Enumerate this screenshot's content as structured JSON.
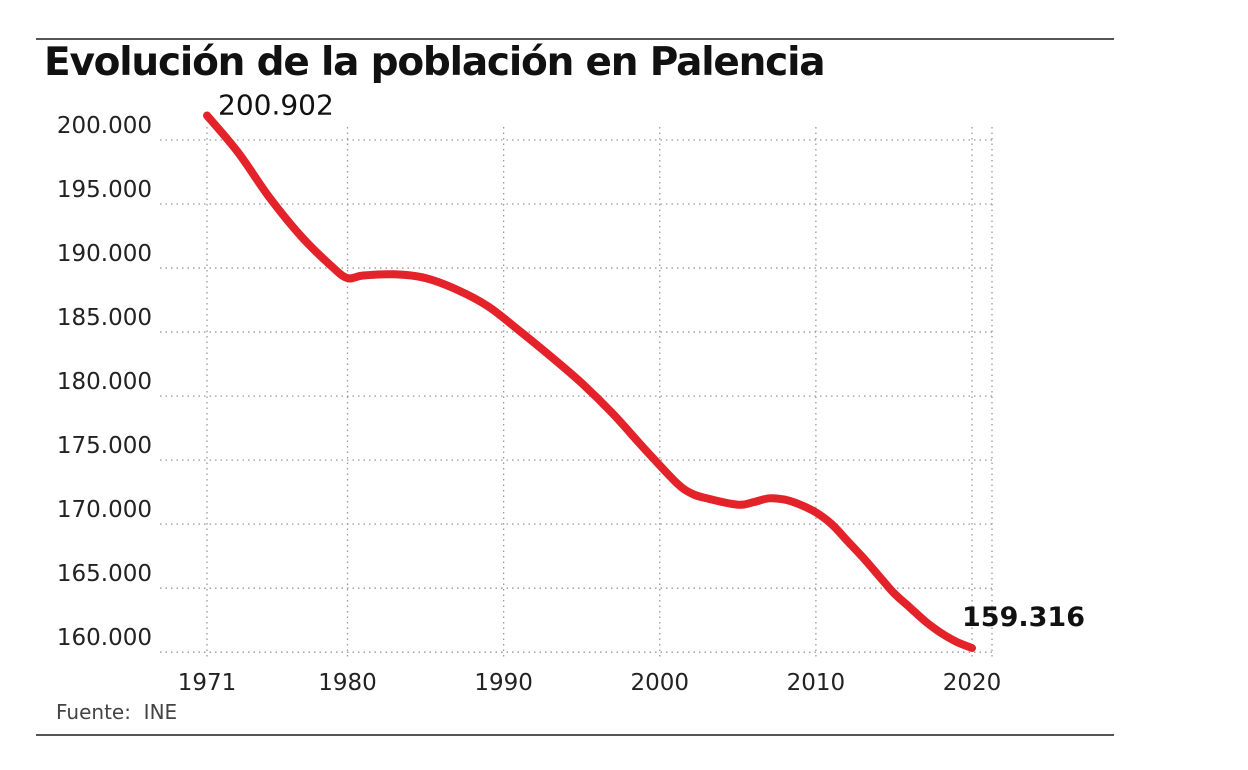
{
  "title": "Evolución de la población en Palencia",
  "source": "Fuente:  INE",
  "chart_data": {
    "type": "line",
    "title": "Evolución de la población en Palencia",
    "xlabel": "",
    "ylabel": "",
    "xlim": [
      1971,
      2020
    ],
    "ylim": [
      159000,
      200000
    ],
    "x_ticks": [
      "1971",
      "1980",
      "1990",
      "2000",
      "2010",
      "2020"
    ],
    "y_ticks": [
      "200.000",
      "195.000",
      "190.000",
      "185.000",
      "180.000",
      "175.000",
      "170.000",
      "165.000",
      "160.000"
    ],
    "grid": true,
    "line_color": "#e32229",
    "series": [
      {
        "x": [
          1971,
          1973,
          1975,
          1977,
          1979,
          1980,
          1981,
          1983,
          1985,
          1987,
          1989,
          1991,
          1993,
          1995,
          1997,
          1999,
          2001,
          2002,
          2003,
          2005,
          2006,
          2007,
          2008,
          2009,
          2010,
          2011,
          2012,
          2013,
          2014,
          2015,
          2016,
          2017,
          2018,
          2019,
          2020
        ],
        "y": [
          200902,
          198000,
          194500,
          191500,
          189100,
          188200,
          188400,
          188500,
          188200,
          187300,
          186000,
          184100,
          182100,
          180000,
          177600,
          174900,
          172300,
          171400,
          171000,
          170500,
          170700,
          171000,
          170900,
          170500,
          169900,
          169000,
          167700,
          166400,
          165000,
          163600,
          162500,
          161400,
          160500,
          159800,
          159316
        ]
      }
    ],
    "annotations": [
      {
        "label": "200.902",
        "x": 1971,
        "y": 200902
      },
      {
        "label": "159.316",
        "x": 2020,
        "y": 159316
      }
    ]
  }
}
